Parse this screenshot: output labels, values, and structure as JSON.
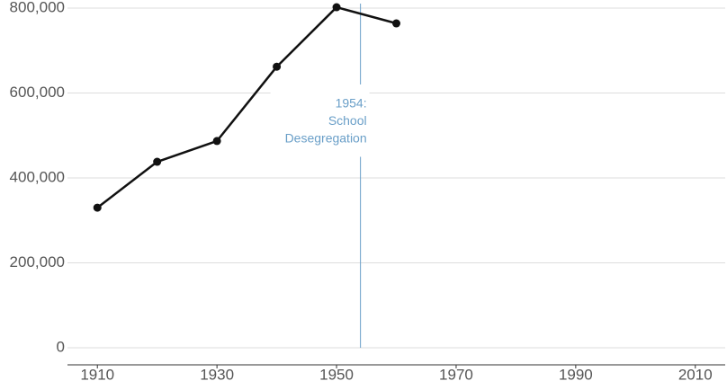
{
  "chart_data": {
    "type": "line",
    "x": [
      1910,
      1920,
      1930,
      1940,
      1950,
      1960
    ],
    "values": [
      330000,
      438000,
      487000,
      662000,
      802000,
      764000
    ],
    "color": "#111111",
    "xlim": [
      1905,
      2015
    ],
    "xticks": [
      1910,
      1930,
      1950,
      1970,
      1990,
      2010
    ],
    "ylim": [
      0,
      800000
    ],
    "yticks": [
      0,
      {
        "value": 200000,
        "label": "200,000"
      },
      {
        "value": 400000,
        "label": "400,000"
      },
      {
        "value": 600000,
        "label": "600,000"
      },
      {
        "value": 800000,
        "label": "800,000"
      }
    ],
    "grid": true,
    "annotations": [
      {
        "x": 1954,
        "text": [
          "1954:",
          "School",
          "Desegregation"
        ],
        "color": "#6a9fc8"
      }
    ]
  }
}
